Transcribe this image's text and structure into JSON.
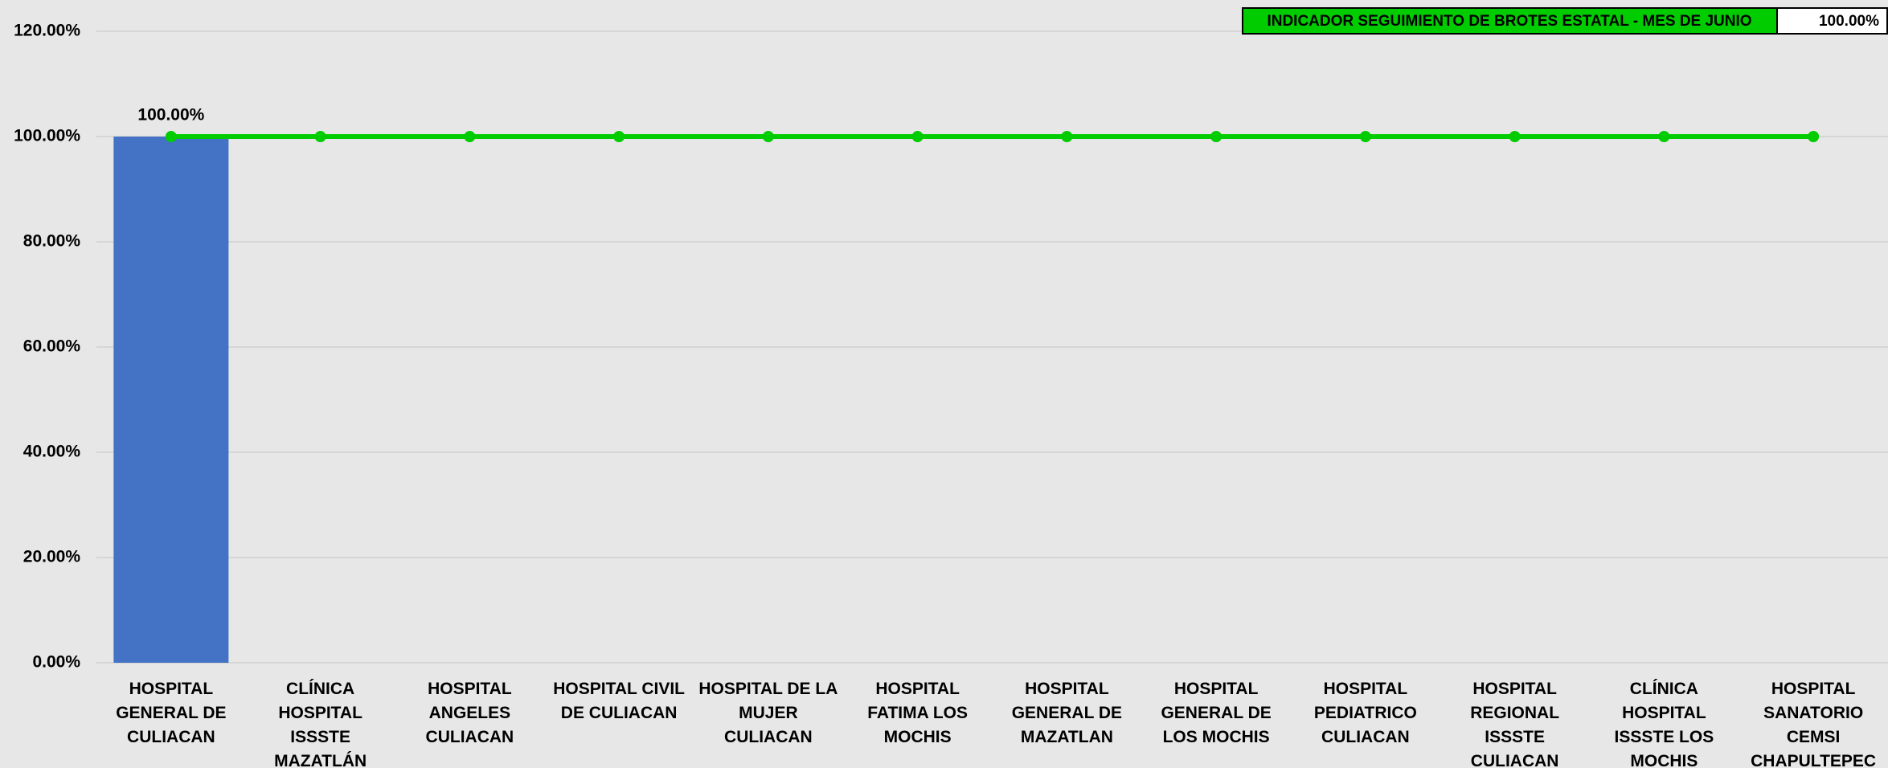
{
  "chart_data": {
    "type": "bar",
    "categories": [
      "HOSPITAL GENERAL DE CULIACAN",
      "CLÍNICA HOSPITAL ISSSTE MAZATLÁN",
      "HOSPITAL ANGELES CULIACAN",
      "HOSPITAL CIVIL DE CULIACAN",
      "HOSPITAL DE LA MUJER CULIACAN",
      "HOSPITAL FATIMA LOS MOCHIS",
      "HOSPITAL GENERAL DE MAZATLAN",
      "HOSPITAL GENERAL DE LOS MOCHIS",
      "HOSPITAL PEDIATRICO CULIACAN",
      "HOSPITAL REGIONAL ISSSTE CULIACAN",
      "CLÍNICA HOSPITAL ISSSTE LOS MOCHIS",
      "HOSPITAL SANATORIO CEMSI CHAPULTEPEC"
    ],
    "series": [
      {
        "type": "bar",
        "color": "#4472c4",
        "values": [
          100,
          null,
          null,
          null,
          null,
          null,
          null,
          null,
          null,
          null,
          null,
          null
        ],
        "value_labels": [
          "100.00%",
          null,
          null,
          null,
          null,
          null,
          null,
          null,
          null,
          null,
          null,
          null
        ]
      },
      {
        "type": "line",
        "name": "INDICADOR SEGUIMIENTO DE BROTES ESTATAL - MES DE JUNIO",
        "color": "#00cc00",
        "values": [
          100,
          100,
          100,
          100,
          100,
          100,
          100,
          100,
          100,
          100,
          100,
          100
        ]
      }
    ],
    "legend_value": {
      "value": 100,
      "label": "100.00%"
    },
    "ylim": [
      0,
      120
    ],
    "yticks": [
      {
        "value": 0,
        "label": "0.00%"
      },
      {
        "value": 20,
        "label": "20.00%"
      },
      {
        "value": 40,
        "label": "40.00%"
      },
      {
        "value": 60,
        "label": "60.00%"
      },
      {
        "value": 80,
        "label": "80.00%"
      },
      {
        "value": 100,
        "label": "100.00%"
      },
      {
        "value": 120,
        "label": "120.00%"
      }
    ],
    "grid": true
  }
}
